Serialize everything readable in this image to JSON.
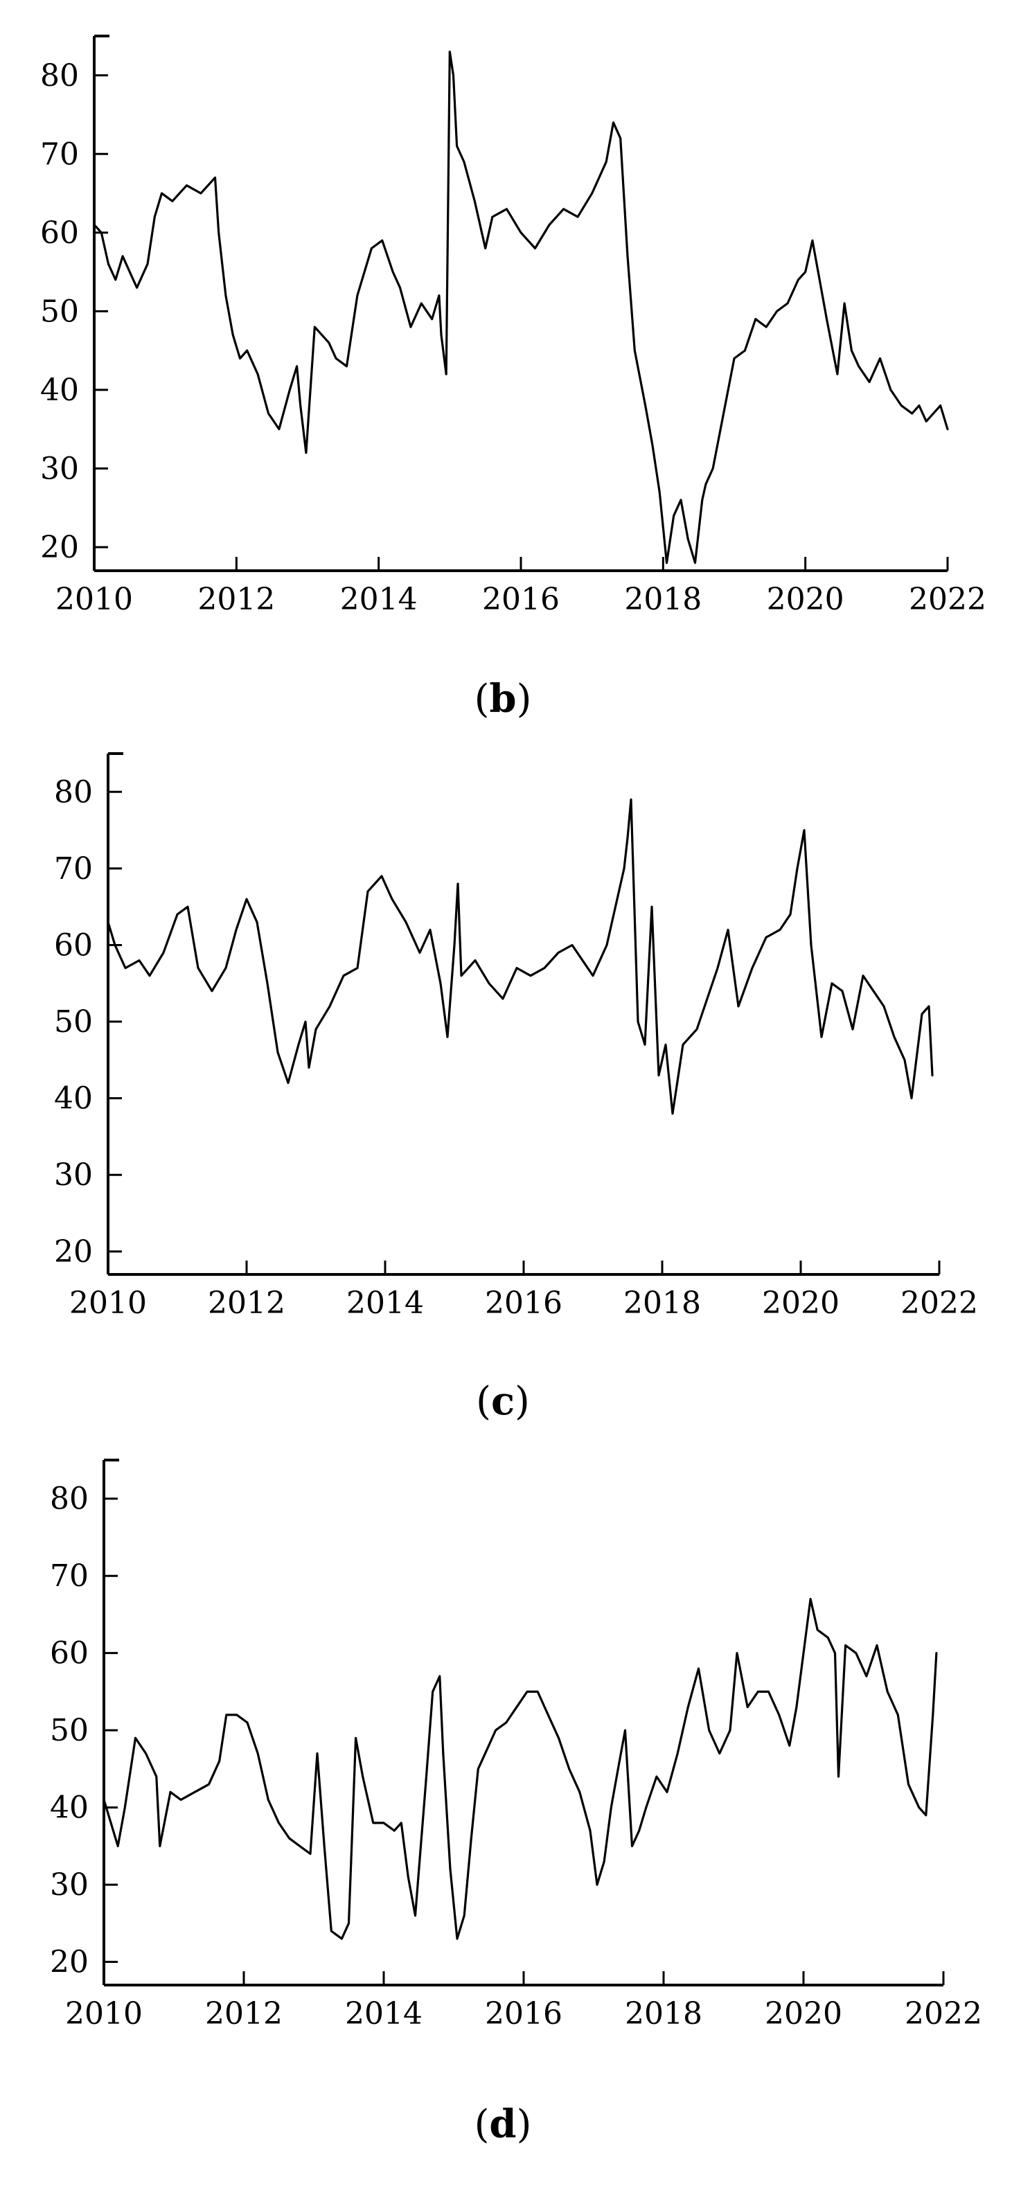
{
  "chart_data": [
    {
      "type": "line",
      "panel_label": "b",
      "xlim": [
        2010,
        2022
      ],
      "ylim": [
        17,
        85
      ],
      "xticks": [
        2010,
        2012,
        2014,
        2016,
        2018,
        2020,
        2022
      ],
      "yticks": [
        20,
        30,
        40,
        50,
        60,
        70,
        80
      ],
      "grid": false,
      "series": [
        {
          "x": [
            2010.0,
            2010.1,
            2010.2,
            2010.3,
            2010.4,
            2010.5,
            2010.6,
            2010.75,
            2010.85,
            2010.95,
            2011.1,
            2011.3,
            2011.5,
            2011.7,
            2011.75,
            2011.85,
            2011.95,
            2012.05,
            2012.15,
            2012.3,
            2012.45,
            2012.6,
            2012.75,
            2012.85,
            2012.9,
            2012.98,
            2013.1,
            2013.3,
            2013.4,
            2013.55,
            2013.7,
            2013.9,
            2014.05,
            2014.2,
            2014.3,
            2014.45,
            2014.6,
            2014.75,
            2014.85,
            2014.88,
            2014.95,
            2015.0,
            2015.05,
            2015.1,
            2015.2,
            2015.35,
            2015.5,
            2015.6,
            2015.8,
            2016.0,
            2016.2,
            2016.4,
            2016.6,
            2016.8,
            2017.0,
            2017.2,
            2017.3,
            2017.4,
            2017.5,
            2017.6,
            2017.75,
            2017.85,
            2017.95,
            2018.05,
            2018.15,
            2018.25,
            2018.35,
            2018.45,
            2018.55,
            2018.6,
            2018.7,
            2018.85,
            2019.0,
            2019.15,
            2019.3,
            2019.45,
            2019.6,
            2019.75,
            2019.9,
            2020.0,
            2020.1,
            2020.2,
            2020.3,
            2020.45,
            2020.55,
            2020.65,
            2020.75,
            2020.9,
            2021.05,
            2021.2,
            2021.35,
            2021.5,
            2021.6,
            2021.7,
            2021.8,
            2021.9,
            2022.0
          ],
          "y": [
            61,
            60,
            56,
            54,
            57,
            55,
            53,
            56,
            62,
            65,
            64,
            66,
            65,
            67,
            60,
            52,
            47,
            44,
            45,
            42,
            37,
            35,
            40,
            43,
            38,
            32,
            48,
            46,
            44,
            43,
            52,
            58,
            59,
            55,
            53,
            48,
            51,
            49,
            52,
            47,
            42,
            83,
            80,
            71,
            69,
            64,
            58,
            62,
            63,
            60,
            58,
            61,
            63,
            62,
            65,
            69,
            74,
            72,
            57,
            45,
            38,
            33,
            27,
            18,
            24,
            26,
            21,
            18,
            26,
            28,
            30,
            37,
            44,
            45,
            49,
            48,
            50,
            51,
            54,
            55,
            59,
            54,
            49,
            42,
            51,
            45,
            43,
            41,
            44,
            40,
            38,
            37,
            38,
            36,
            37,
            38,
            35
          ]
        }
      ]
    },
    {
      "type": "line",
      "panel_label": "c",
      "xlim": [
        2010,
        2022
      ],
      "ylim": [
        17,
        85
      ],
      "xticks": [
        2010,
        2012,
        2014,
        2016,
        2018,
        2020,
        2022
      ],
      "yticks": [
        20,
        30,
        40,
        50,
        60,
        70,
        80
      ],
      "grid": false,
      "series": [
        {
          "x": [
            2010.0,
            2010.1,
            2010.25,
            2010.45,
            2010.6,
            2010.8,
            2011.0,
            2011.15,
            2011.3,
            2011.5,
            2011.7,
            2011.85,
            2012.0,
            2012.15,
            2012.3,
            2012.45,
            2012.6,
            2012.75,
            2012.85,
            2012.9,
            2013.0,
            2013.2,
            2013.4,
            2013.6,
            2013.75,
            2013.95,
            2014.1,
            2014.3,
            2014.5,
            2014.65,
            2014.8,
            2014.9,
            2015.0,
            2015.05,
            2015.1,
            2015.3,
            2015.5,
            2015.7,
            2015.9,
            2016.1,
            2016.3,
            2016.5,
            2016.7,
            2016.85,
            2017.0,
            2017.2,
            2017.35,
            2017.45,
            2017.5,
            2017.55,
            2017.65,
            2017.75,
            2017.85,
            2017.95,
            2018.05,
            2018.15,
            2018.3,
            2018.5,
            2018.65,
            2018.8,
            2018.95,
            2019.1,
            2019.3,
            2019.5,
            2019.7,
            2019.85,
            2019.95,
            2020.05,
            2020.15,
            2020.3,
            2020.45,
            2020.6,
            2020.75,
            2020.9,
            2021.05,
            2021.2,
            2021.35,
            2021.5,
            2021.6,
            2021.75,
            2021.85,
            2021.9
          ],
          "y": [
            63,
            60,
            57,
            58,
            56,
            59,
            64,
            65,
            57,
            54,
            57,
            62,
            66,
            63,
            55,
            46,
            42,
            47,
            50,
            44,
            49,
            52,
            56,
            57,
            67,
            69,
            66,
            63,
            59,
            62,
            55,
            48,
            60,
            68,
            56,
            58,
            55,
            53,
            57,
            56,
            57,
            59,
            60,
            58,
            56,
            60,
            66,
            70,
            74,
            79,
            50,
            47,
            65,
            43,
            47,
            38,
            47,
            49,
            53,
            57,
            62,
            52,
            57,
            61,
            62,
            64,
            70,
            75,
            60,
            48,
            55,
            54,
            49,
            56,
            54,
            52,
            48,
            45,
            40,
            51,
            52,
            43
          ]
        }
      ]
    },
    {
      "type": "line",
      "panel_label": "d",
      "xlim": [
        2010,
        2022
      ],
      "ylim": [
        17,
        85
      ],
      "xticks": [
        2010,
        2012,
        2014,
        2016,
        2018,
        2020,
        2022
      ],
      "yticks": [
        20,
        30,
        40,
        50,
        60,
        70,
        80
      ],
      "grid": false,
      "series": [
        {
          "x": [
            2010.0,
            2010.1,
            2010.2,
            2010.3,
            2010.45,
            2010.6,
            2010.75,
            2010.8,
            2010.95,
            2011.1,
            2011.3,
            2011.5,
            2011.65,
            2011.75,
            2011.9,
            2012.05,
            2012.2,
            2012.35,
            2012.5,
            2012.65,
            2012.8,
            2012.95,
            2013.05,
            2013.15,
            2013.25,
            2013.4,
            2013.5,
            2013.6,
            2013.7,
            2013.85,
            2014.0,
            2014.15,
            2014.25,
            2014.35,
            2014.45,
            2014.6,
            2014.7,
            2014.8,
            2014.85,
            2014.95,
            2015.05,
            2015.15,
            2015.25,
            2015.35,
            2015.45,
            2015.6,
            2015.75,
            2015.9,
            2016.05,
            2016.2,
            2016.35,
            2016.5,
            2016.65,
            2016.8,
            2016.95,
            2017.05,
            2017.15,
            2017.25,
            2017.35,
            2017.45,
            2017.55,
            2017.65,
            2017.75,
            2017.9,
            2018.05,
            2018.2,
            2018.35,
            2018.5,
            2018.65,
            2018.8,
            2018.95,
            2019.05,
            2019.2,
            2019.35,
            2019.5,
            2019.65,
            2019.8,
            2019.9,
            2020.0,
            2020.1,
            2020.2,
            2020.35,
            2020.45,
            2020.5,
            2020.6,
            2020.75,
            2020.9,
            2021.05,
            2021.2,
            2021.35,
            2021.5,
            2021.65,
            2021.75,
            2021.85,
            2021.9
          ],
          "y": [
            41,
            38,
            35,
            40,
            49,
            47,
            44,
            35,
            42,
            41,
            42,
            43,
            46,
            52,
            52,
            51,
            47,
            41,
            38,
            36,
            35,
            34,
            47,
            35,
            24,
            23,
            25,
            49,
            44,
            38,
            38,
            37,
            38,
            31,
            26,
            43,
            55,
            57,
            47,
            32,
            23,
            26,
            36,
            45,
            47,
            50,
            51,
            53,
            55,
            55,
            52,
            49,
            45,
            42,
            37,
            30,
            33,
            40,
            45,
            50,
            35,
            37,
            40,
            44,
            42,
            47,
            53,
            58,
            50,
            47,
            50,
            60,
            53,
            55,
            55,
            52,
            48,
            53,
            60,
            67,
            63,
            62,
            60,
            44,
            61,
            60,
            57,
            61,
            55,
            52,
            43,
            40,
            39,
            52,
            60
          ]
        }
      ]
    }
  ]
}
